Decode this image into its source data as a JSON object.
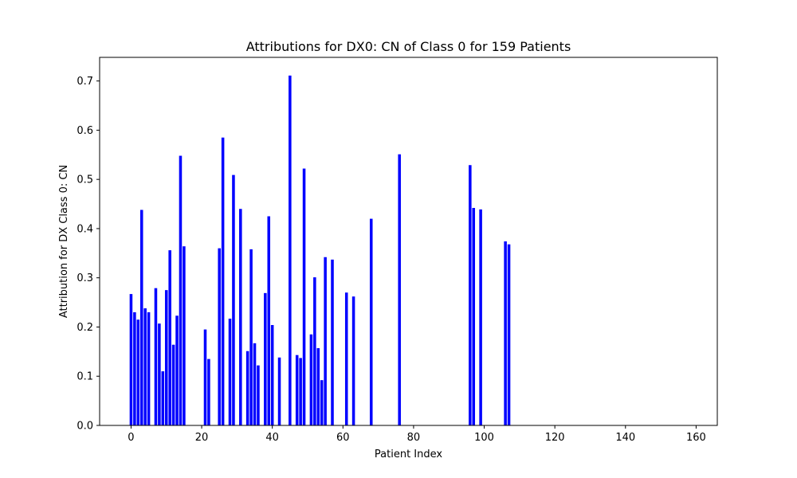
{
  "chart_data": {
    "type": "bar",
    "title": "Attributions for DX0: CN of Class 0 for 159 Patients",
    "xlabel": "Patient Index",
    "ylabel": "Attribution for DX Class 0: CN",
    "xlim": [
      -8.9,
      166
    ],
    "ylim": [
      0,
      0.748
    ],
    "xticks": [
      0,
      20,
      40,
      60,
      80,
      100,
      120,
      140,
      160
    ],
    "yticks": [
      0.0,
      0.1,
      0.2,
      0.3,
      0.4,
      0.5,
      0.6,
      0.7
    ],
    "ytick_labels": [
      "0.0",
      "0.1",
      "0.2",
      "0.3",
      "0.4",
      "0.5",
      "0.6",
      "0.7"
    ],
    "bar_color": "#0000ff",
    "grid": false,
    "points": [
      {
        "x": 0,
        "y": 0.267
      },
      {
        "x": 1,
        "y": 0.23
      },
      {
        "x": 2,
        "y": 0.215
      },
      {
        "x": 3,
        "y": 0.438
      },
      {
        "x": 4,
        "y": 0.238
      },
      {
        "x": 5,
        "y": 0.23
      },
      {
        "x": 7,
        "y": 0.279
      },
      {
        "x": 8,
        "y": 0.207
      },
      {
        "x": 9,
        "y": 0.11
      },
      {
        "x": 10,
        "y": 0.275
      },
      {
        "x": 11,
        "y": 0.356
      },
      {
        "x": 12,
        "y": 0.164
      },
      {
        "x": 13,
        "y": 0.223
      },
      {
        "x": 14,
        "y": 0.548
      },
      {
        "x": 15,
        "y": 0.364
      },
      {
        "x": 21,
        "y": 0.195
      },
      {
        "x": 22,
        "y": 0.135
      },
      {
        "x": 25,
        "y": 0.36
      },
      {
        "x": 26,
        "y": 0.585
      },
      {
        "x": 28,
        "y": 0.217
      },
      {
        "x": 29,
        "y": 0.509
      },
      {
        "x": 31,
        "y": 0.44
      },
      {
        "x": 33,
        "y": 0.151
      },
      {
        "x": 34,
        "y": 0.358
      },
      {
        "x": 35,
        "y": 0.167
      },
      {
        "x": 36,
        "y": 0.122
      },
      {
        "x": 38,
        "y": 0.269
      },
      {
        "x": 39,
        "y": 0.425
      },
      {
        "x": 40,
        "y": 0.204
      },
      {
        "x": 42,
        "y": 0.138
      },
      {
        "x": 45,
        "y": 0.711
      },
      {
        "x": 47,
        "y": 0.143
      },
      {
        "x": 48,
        "y": 0.137
      },
      {
        "x": 49,
        "y": 0.522
      },
      {
        "x": 51,
        "y": 0.185
      },
      {
        "x": 52,
        "y": 0.301
      },
      {
        "x": 53,
        "y": 0.157
      },
      {
        "x": 54,
        "y": 0.092
      },
      {
        "x": 55,
        "y": 0.342
      },
      {
        "x": 57,
        "y": 0.337
      },
      {
        "x": 61,
        "y": 0.27
      },
      {
        "x": 63,
        "y": 0.262
      },
      {
        "x": 68,
        "y": 0.42
      },
      {
        "x": 76,
        "y": 0.551
      },
      {
        "x": 96,
        "y": 0.529
      },
      {
        "x": 97,
        "y": 0.442
      },
      {
        "x": 99,
        "y": 0.439
      },
      {
        "x": 106,
        "y": 0.374
      },
      {
        "x": 107,
        "y": 0.368
      }
    ]
  }
}
